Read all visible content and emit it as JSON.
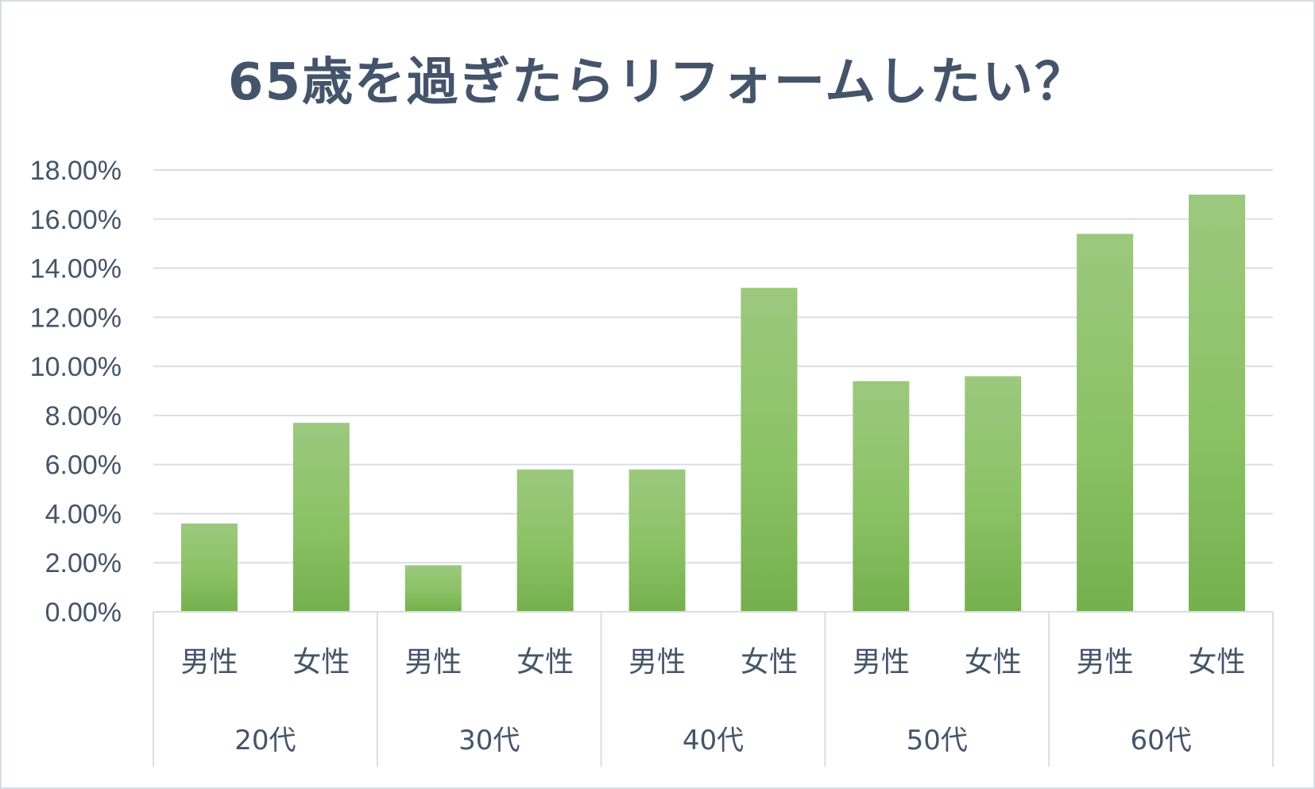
{
  "chart_data": {
    "type": "bar",
    "title": "65歳を過ぎたらリフォームしたい？",
    "xlabel": "",
    "ylabel": "",
    "ylim": [
      0,
      18
    ],
    "y_ticks": [
      "0.00%",
      "2.00%",
      "4.00%",
      "6.00%",
      "8.00%",
      "10.00%",
      "12.00%",
      "14.00%",
      "16.00%",
      "18.00%"
    ],
    "groups": [
      "20代",
      "30代",
      "40代",
      "50代",
      "60代"
    ],
    "categories": [
      "男性",
      "女性",
      "男性",
      "女性",
      "男性",
      "女性",
      "男性",
      "女性",
      "男性",
      "女性"
    ],
    "values": [
      3.6,
      7.7,
      1.9,
      5.8,
      5.8,
      13.2,
      9.4,
      9.6,
      15.4,
      17.0
    ],
    "grid": true,
    "legend": "none",
    "bar_color_top": "#9cc87e",
    "bar_color_bottom": "#74b04d"
  }
}
